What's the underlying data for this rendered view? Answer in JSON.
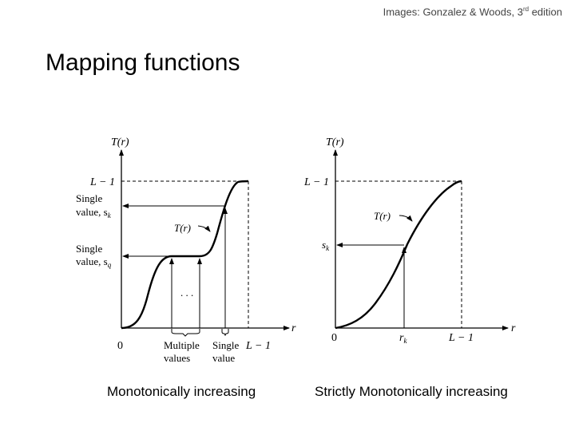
{
  "credit": {
    "text": "Images: Gonzalez & Woods, 3",
    "sup": "rd",
    "tail": " edition"
  },
  "title": "Mapping functions",
  "left_graph": {
    "axis_y": "T(r)",
    "axis_x": "r",
    "top_level": "L − 1",
    "single_sk_line1": "Single",
    "single_sk_line2": "value, s",
    "single_sk_sub": "k",
    "single_sq_line1": "Single",
    "single_sq_line2": "value, s",
    "single_sq_sub": "q",
    "curve_label": "T(r)",
    "dots": ". . .",
    "origin": "0",
    "multiple_line1": "Multiple",
    "multiple_line2": "values",
    "single_line1": "Single",
    "single_line2": "value",
    "x_end": "L − 1"
  },
  "right_graph": {
    "axis_y": "T(r)",
    "axis_x": "r",
    "top_level": "L − 1",
    "sk": "s",
    "sk_sub": "k",
    "curve_label": "T(r)",
    "origin": "0",
    "rk": "r",
    "rk_sub": "k",
    "x_end": "L − 1"
  },
  "captions": {
    "left": "Monotonically increasing",
    "right": "Strictly Monotonically increasing"
  }
}
